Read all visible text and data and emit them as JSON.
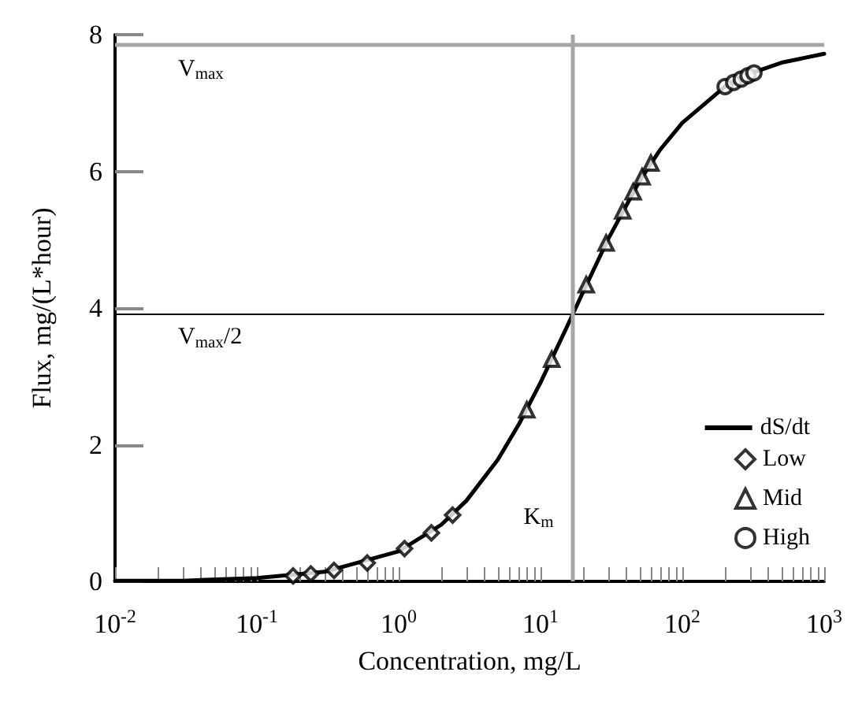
{
  "chart_data": {
    "type": "line",
    "xlabel": "Concentration, mg/L",
    "ylabel": "Flux, mg/(L*hour)",
    "log": "x",
    "xlim": [
      0.01,
      1000
    ],
    "ylim": [
      0,
      8
    ],
    "xticks": [
      {
        "value": 0.01,
        "label": "10$^{-2}$"
      },
      {
        "value": 0.02,
        "label": null
      },
      {
        "value": 0.03,
        "label": null
      },
      {
        "value": 0.04,
        "label": null
      },
      {
        "value": 0.05,
        "label": null
      },
      {
        "value": 0.06,
        "label": null
      },
      {
        "value": 0.07,
        "label": null
      },
      {
        "value": 0.08,
        "label": null
      },
      {
        "value": 0.09,
        "label": null
      },
      {
        "value": 0.1,
        "label": "10$^{-1}$"
      },
      {
        "value": 0.2,
        "label": null
      },
      {
        "value": 0.3,
        "label": null
      },
      {
        "value": 0.4,
        "label": null
      },
      {
        "value": 0.5,
        "label": null
      },
      {
        "value": 0.6,
        "label": null
      },
      {
        "value": 0.7,
        "label": null
      },
      {
        "value": 0.8,
        "label": null
      },
      {
        "value": 0.9,
        "label": null
      },
      {
        "value": 1,
        "label": "10$^{0}$"
      },
      {
        "value": 2,
        "label": null
      },
      {
        "value": 3,
        "label": null
      },
      {
        "value": 4,
        "label": null
      },
      {
        "value": 5,
        "label": null
      },
      {
        "value": 6,
        "label": null
      },
      {
        "value": 7,
        "label": null
      },
      {
        "value": 8,
        "label": null
      },
      {
        "value": 9,
        "label": null
      },
      {
        "value": 10,
        "label": "10$^{1}$"
      },
      {
        "value": 20,
        "label": null
      },
      {
        "value": 30,
        "label": null
      },
      {
        "value": 40,
        "label": null
      },
      {
        "value": 50,
        "label": null
      },
      {
        "value": 60,
        "label": null
      },
      {
        "value": 70,
        "label": null
      },
      {
        "value": 80,
        "label": null
      },
      {
        "value": 90,
        "label": null
      },
      {
        "value": 100,
        "label": "10$^{2}$"
      },
      {
        "value": 200,
        "label": null
      },
      {
        "value": 300,
        "label": null
      },
      {
        "value": 400,
        "label": null
      },
      {
        "value": 500,
        "label": null
      },
      {
        "value": 600,
        "label": null
      },
      {
        "value": 700,
        "label": null
      },
      {
        "value": 800,
        "label": null
      },
      {
        "value": 900,
        "label": null
      },
      {
        "value": 1000,
        "label": "10$^{3}$"
      }
    ],
    "yticks": [
      0,
      2,
      4,
      6,
      8
    ],
    "grid": false,
    "legend": "bottom right",
    "line_style": "solid",
    "series": [
      {
        "name": "dS/dt",
        "type": "line",
        "marker": "none",
        "color": "#000000",
        "x": [
          0.01,
          0.03,
          0.1,
          0.3,
          1,
          2,
          3,
          5,
          7,
          10,
          15,
          20,
          30,
          50,
          70,
          100,
          200,
          300,
          500,
          1000
        ],
        "values": [
          0.01,
          0.01,
          0.05,
          0.14,
          0.44,
          0.83,
          1.18,
          1.78,
          2.29,
          2.91,
          3.68,
          4.24,
          5.01,
          5.86,
          6.32,
          6.71,
          7.24,
          7.43,
          7.59,
          7.72
        ]
      },
      {
        "name": "Low",
        "type": "scatter",
        "marker": "diamond",
        "color": "#000000",
        "x": [
          0.18,
          0.24,
          0.35,
          0.6,
          1.1,
          1.7,
          2.4
        ],
        "values": [
          0.08,
          0.11,
          0.16,
          0.27,
          0.48,
          0.71,
          0.97
        ]
      },
      {
        "name": "Mid",
        "type": "scatter",
        "marker": "triangle",
        "color": "#000000",
        "x": [
          8,
          12,
          21,
          29,
          38,
          45,
          52,
          60
        ],
        "values": [
          2.51,
          3.25,
          4.34,
          4.95,
          5.42,
          5.7,
          5.92,
          6.12
        ]
      },
      {
        "name": "High",
        "type": "scatter",
        "marker": "circle",
        "color": "#000000",
        "x": [
          200,
          230,
          260,
          290,
          320
        ],
        "values": [
          7.24,
          7.3,
          7.35,
          7.4,
          7.44
        ]
      }
    ],
    "ref_lines": [
      {
        "axis": "y",
        "value": 7.85,
        "label": "V$_{max}$",
        "color": "#a6a6a6"
      },
      {
        "axis": "y",
        "value": 3.92,
        "label": "V$_{max}$/2",
        "color": "#000000"
      },
      {
        "axis": "x",
        "value": 17,
        "label": "K$_{m}$",
        "color": "#a6a6a6"
      }
    ]
  }
}
